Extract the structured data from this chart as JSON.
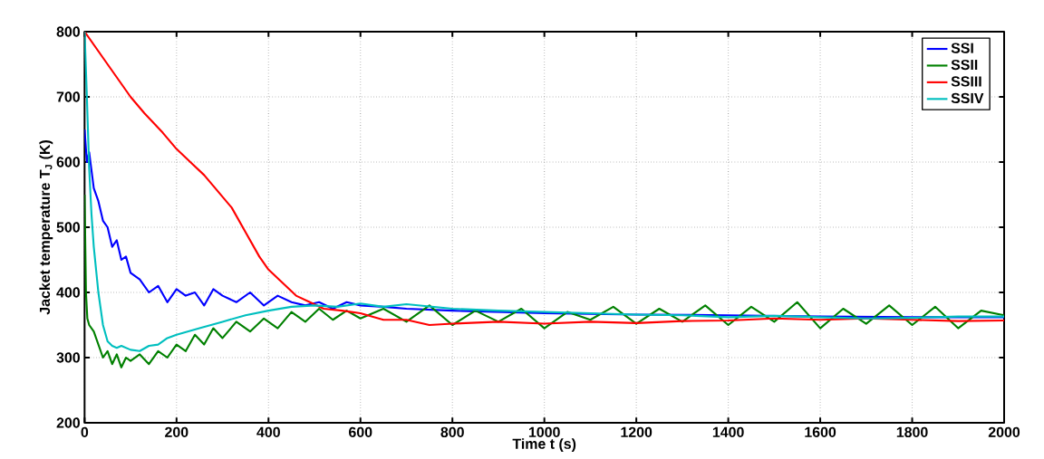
{
  "chart_data": {
    "type": "line",
    "xlabel": "Time t (s)",
    "ylabel": "Jacket temperature T$_{J}$ (K)",
    "xlim": [
      0,
      2000
    ],
    "ylim": [
      200,
      800
    ],
    "xticks": [
      0,
      200,
      400,
      600,
      800,
      1000,
      1200,
      1400,
      1600,
      1800,
      2000
    ],
    "yticks": [
      200,
      300,
      400,
      500,
      600,
      700,
      800
    ],
    "grid": true,
    "legend": "top right",
    "line_style": "solid",
    "marker": "none",
    "series": [
      {
        "name": "SSI",
        "color": "#0000ff",
        "x": [
          0,
          5,
          10,
          20,
          30,
          40,
          50,
          60,
          70,
          80,
          90,
          100,
          120,
          140,
          160,
          180,
          200,
          220,
          240,
          260,
          280,
          300,
          330,
          360,
          390,
          420,
          450,
          480,
          510,
          540,
          570,
          600,
          650,
          700,
          800,
          900,
          1000,
          1200,
          1400,
          1600,
          1800,
          2000
        ],
        "values": [
          650,
          600,
          615,
          560,
          540,
          510,
          500,
          470,
          480,
          450,
          455,
          430,
          420,
          400,
          410,
          385,
          405,
          395,
          400,
          380,
          405,
          395,
          385,
          400,
          380,
          395,
          385,
          380,
          385,
          375,
          385,
          380,
          378,
          375,
          372,
          370,
          368,
          366,
          365,
          363,
          362,
          362
        ]
      },
      {
        "name": "SSII",
        "color": "#008000",
        "x": [
          0,
          3,
          6,
          10,
          20,
          30,
          40,
          50,
          60,
          70,
          80,
          90,
          100,
          120,
          140,
          160,
          180,
          200,
          220,
          240,
          260,
          280,
          300,
          330,
          360,
          390,
          420,
          450,
          480,
          510,
          540,
          570,
          600,
          650,
          700,
          750,
          800,
          850,
          900,
          950,
          1000,
          1050,
          1100,
          1150,
          1200,
          1250,
          1300,
          1350,
          1400,
          1450,
          1500,
          1550,
          1600,
          1650,
          1700,
          1750,
          1800,
          1850,
          1900,
          1950,
          2000
        ],
        "values": [
          550,
          400,
          360,
          350,
          340,
          320,
          300,
          310,
          290,
          305,
          285,
          300,
          295,
          305,
          290,
          310,
          300,
          320,
          310,
          335,
          320,
          345,
          330,
          355,
          340,
          360,
          345,
          370,
          355,
          375,
          358,
          372,
          360,
          375,
          355,
          380,
          350,
          372,
          355,
          375,
          345,
          370,
          358,
          378,
          352,
          375,
          355,
          380,
          350,
          378,
          355,
          385,
          345,
          375,
          352,
          380,
          350,
          378,
          345,
          372,
          365
        ]
      },
      {
        "name": "SSIII",
        "color": "#ff0000",
        "x": [
          0,
          25,
          50,
          75,
          100,
          130,
          170,
          200,
          230,
          260,
          290,
          320,
          340,
          360,
          380,
          400,
          430,
          460,
          490,
          520,
          560,
          600,
          650,
          700,
          750,
          800,
          900,
          1000,
          1100,
          1200,
          1300,
          1400,
          1500,
          1600,
          1700,
          1800,
          1900,
          2000
        ],
        "values": [
          800,
          775,
          750,
          725,
          700,
          675,
          645,
          620,
          600,
          580,
          555,
          530,
          505,
          480,
          455,
          435,
          415,
          395,
          385,
          375,
          372,
          368,
          358,
          358,
          350,
          352,
          355,
          352,
          355,
          353,
          356,
          357,
          360,
          358,
          360,
          358,
          356,
          357
        ]
      },
      {
        "name": "SSIV",
        "color": "#00bfbf",
        "x": [
          0,
          5,
          10,
          15,
          20,
          30,
          40,
          50,
          60,
          70,
          80,
          100,
          120,
          140,
          160,
          180,
          200,
          250,
          300,
          350,
          400,
          450,
          500,
          550,
          600,
          650,
          700,
          800,
          900,
          1000,
          1100,
          1200,
          1300,
          1400,
          1500,
          1600,
          1700,
          1800,
          1900,
          2000
        ],
        "values": [
          800,
          700,
          590,
          520,
          470,
          400,
          350,
          325,
          318,
          315,
          318,
          312,
          310,
          318,
          320,
          330,
          335,
          345,
          355,
          365,
          372,
          378,
          380,
          378,
          383,
          378,
          382,
          375,
          372,
          370,
          368,
          366,
          365,
          362,
          364,
          362,
          360,
          361,
          363,
          363
        ]
      }
    ]
  }
}
